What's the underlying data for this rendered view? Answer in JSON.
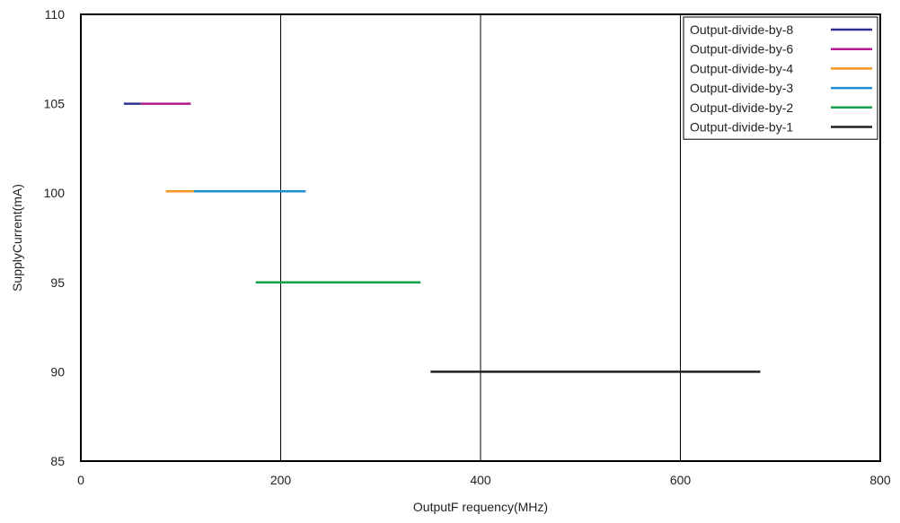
{
  "chart_data": {
    "type": "line",
    "title": "",
    "xlabel": "OutputF requency(MHz)",
    "ylabel": "SupplyCurrent(mA)",
    "xlim": [
      0,
      800
    ],
    "ylim": [
      85,
      110
    ],
    "xticks": [
      0,
      200,
      400,
      600,
      800
    ],
    "yticks": [
      85,
      90,
      95,
      100,
      105,
      110
    ],
    "grid": "vertical",
    "legend_position": "top-right",
    "series": [
      {
        "name": "Output-divide-by-8",
        "color": "#2e3192",
        "x": [
          43,
          60
        ],
        "y": [
          105,
          105
        ]
      },
      {
        "name": "Output-divide-by-6",
        "color": "#b5178a",
        "x": [
          60,
          110
        ],
        "y": [
          105,
          105
        ]
      },
      {
        "name": "Output-divide-by-4",
        "color": "#f7941d",
        "x": [
          85,
          113
        ],
        "y": [
          100.1,
          100.1
        ]
      },
      {
        "name": "Output-divide-by-3",
        "color": "#1c8fd0",
        "x": [
          113,
          225
        ],
        "y": [
          100.1,
          100.1
        ]
      },
      {
        "name": "Output-divide-by-2",
        "color": "#12a24a",
        "x": [
          175,
          340
        ],
        "y": [
          95,
          95
        ]
      },
      {
        "name": "Output-divide-by-1",
        "color": "#231f20",
        "x": [
          350,
          680
        ],
        "y": [
          90,
          90
        ]
      }
    ]
  }
}
